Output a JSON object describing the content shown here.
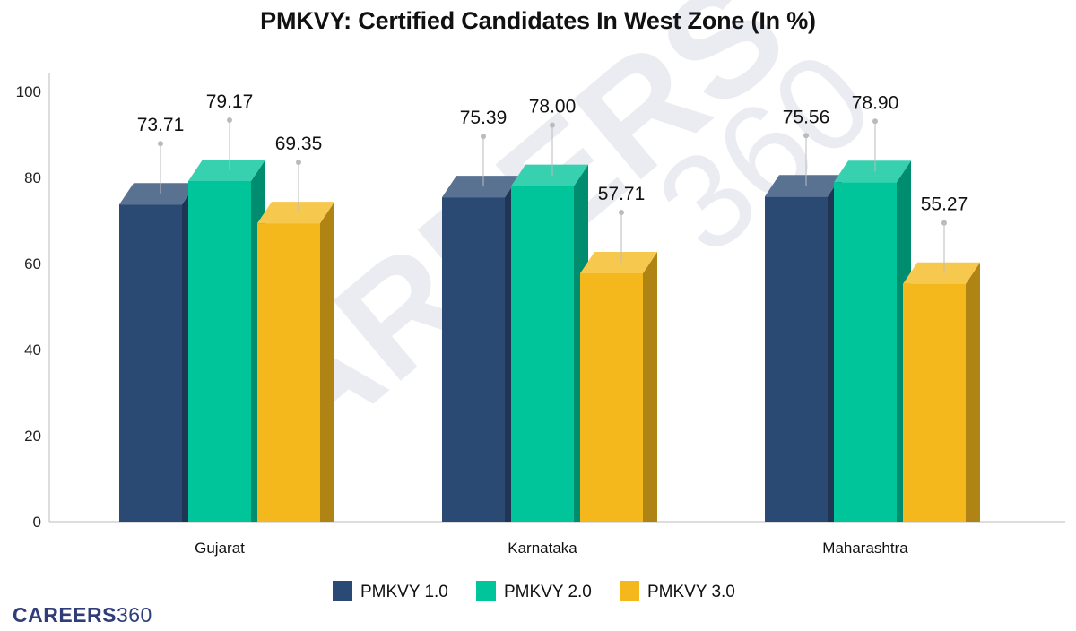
{
  "title": "PMKVY: Certified Candidates In West Zone (In %)",
  "brand": {
    "word": "CAREERS",
    "number": "360"
  },
  "colors": {
    "PMKVY 1.0": "#2b4a73",
    "PMKVY 2.0": "#00c49a",
    "PMKVY 3.0": "#f5b81c"
  },
  "chart_data": {
    "type": "bar",
    "title": "PMKVY: Certified Candidates In West Zone (In %)",
    "categories": [
      "Gujarat",
      "Karnataka",
      "Maharashtra"
    ],
    "series": [
      {
        "name": "PMKVY 1.0",
        "values": [
          73.71,
          75.39,
          75.56
        ],
        "labels": [
          "73.71",
          "75.39",
          "75.56"
        ]
      },
      {
        "name": "PMKVY 2.0",
        "values": [
          79.17,
          78.0,
          78.9
        ],
        "labels": [
          "79.17",
          "78.00",
          "78.90"
        ]
      },
      {
        "name": "PMKVY 3.0",
        "values": [
          69.35,
          57.71,
          55.27
        ],
        "labels": [
          "69.35",
          "57.71",
          "55.27"
        ]
      }
    ],
    "ylim": [
      0,
      100
    ],
    "yticks": [
      "0",
      "20",
      "40",
      "60",
      "80",
      "100"
    ],
    "grid": false,
    "legend": "bottom",
    "style": "3d-bars"
  }
}
